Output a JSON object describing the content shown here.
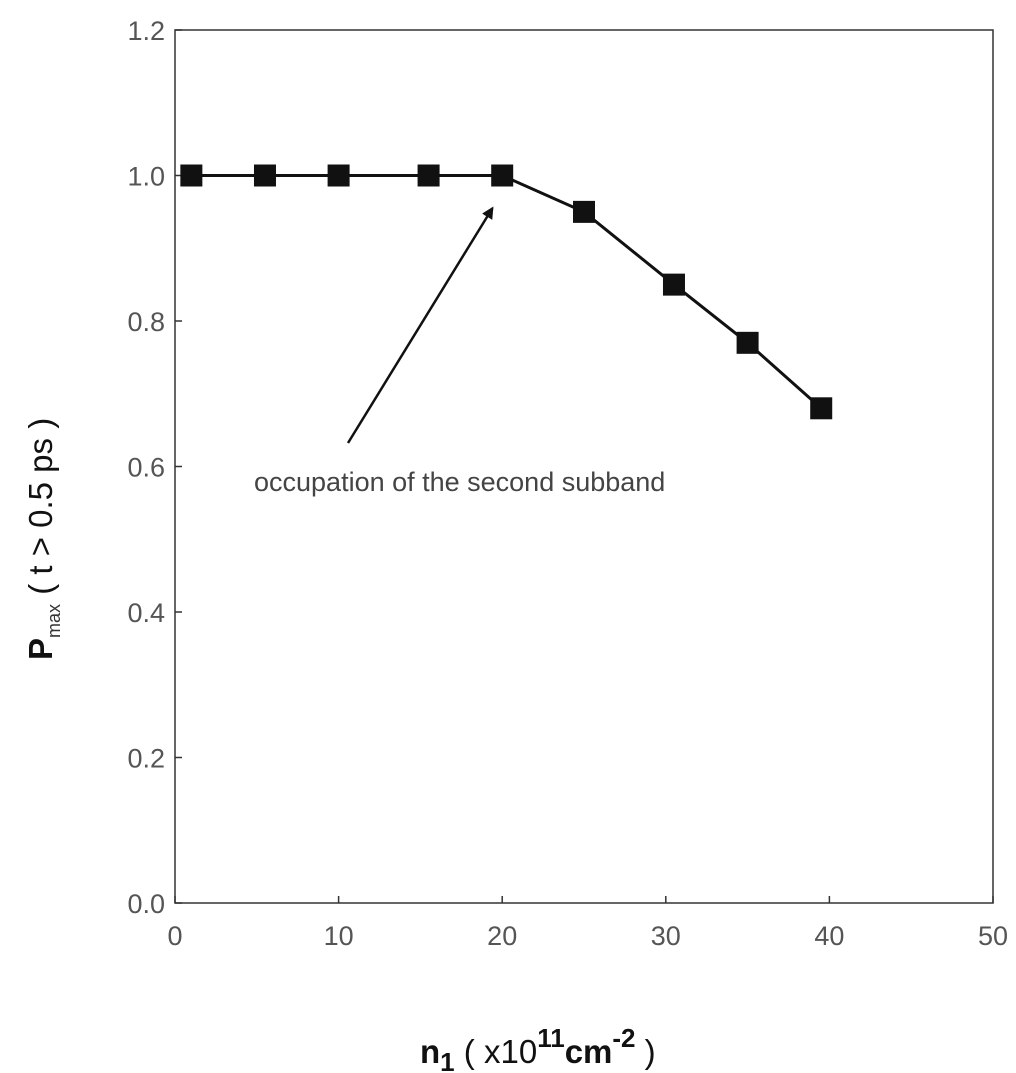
{
  "chart_data": {
    "type": "line",
    "xlim": [
      0,
      50
    ],
    "ylim": [
      0.0,
      1.2
    ],
    "x_ticks": [
      "0",
      "10",
      "20",
      "30",
      "40",
      "50"
    ],
    "y_ticks": [
      "0.0",
      "0.2",
      "0.4",
      "0.6",
      "0.8",
      "1.0",
      "1.2"
    ],
    "grid": false,
    "marker": "square",
    "line_color": "#111111",
    "series": [
      {
        "x": [
          1,
          5.5,
          10,
          15.5,
          20,
          25,
          30.5,
          35,
          39.5
        ],
        "y": [
          1.0,
          1.0,
          1.0,
          1.0,
          1.0,
          0.95,
          0.85,
          0.77,
          0.68
        ]
      }
    ],
    "xlabel": {
      "main": "n",
      "sub": "1",
      "mid": " ( x10",
      "sup": "11",
      "unit": "cm",
      "sup2": "-2",
      "end": " )"
    },
    "ylabel": {
      "main": "P",
      "sub": "max",
      "rest": "  ( t > 0.5 ps )"
    },
    "annotation": {
      "text": "occupation of the second subband",
      "arrow_to": {
        "x": 19.4,
        "y": 0.955
      }
    }
  }
}
